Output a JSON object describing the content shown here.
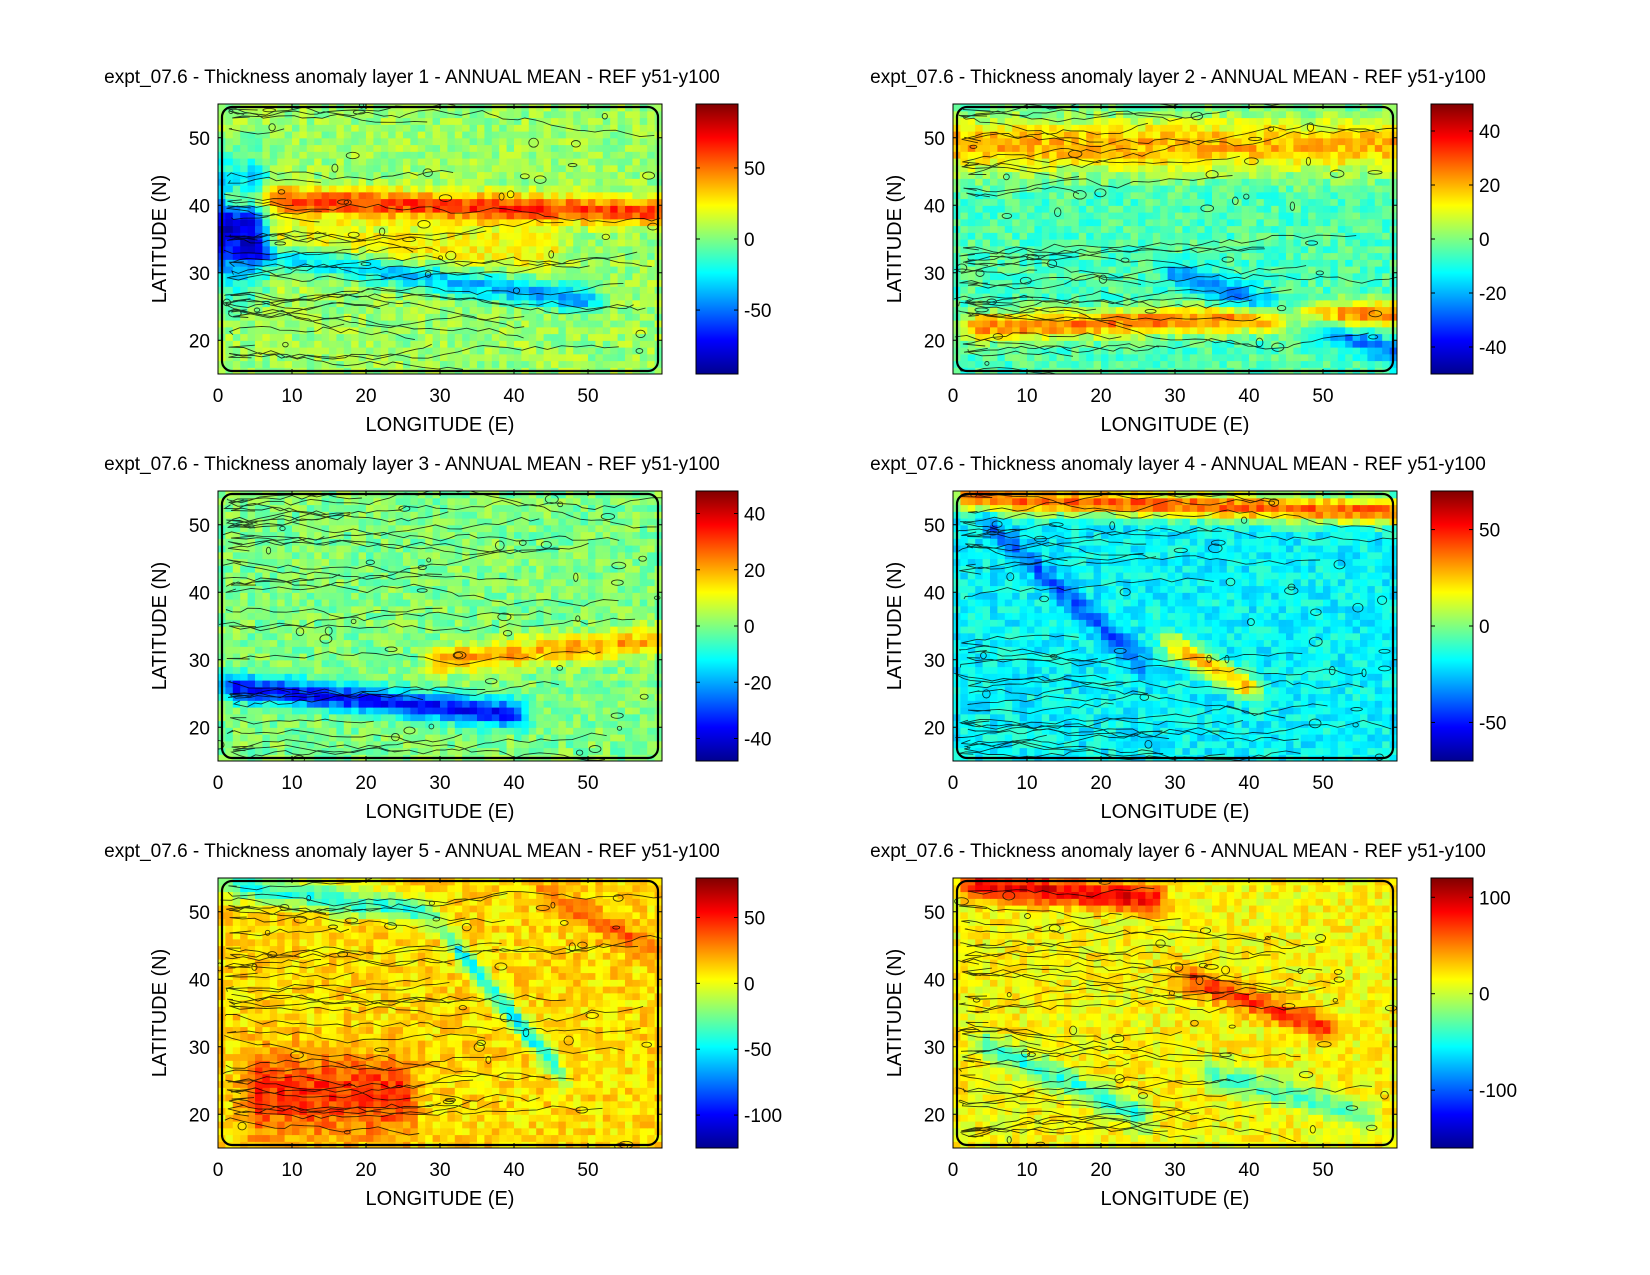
{
  "figure": {
    "background": "#ffffff",
    "colormap": "jet",
    "colormap_stops": [
      "#00008f",
      "#0000ff",
      "#0080ff",
      "#00ffff",
      "#80ff80",
      "#ffff00",
      "#ff8000",
      "#ff0000",
      "#800000"
    ]
  },
  "chart_data": [
    {
      "type": "heatmap",
      "title": "expt_07.6 - Thickness anomaly layer 1 - ANNUAL MEAN - REF y51-y100",
      "xlabel": "LONGITUDE (E)",
      "ylabel": "LATITUDE (N)",
      "xlim": [
        0,
        60
      ],
      "ylim": [
        15,
        55
      ],
      "xticks": [
        0,
        10,
        20,
        30,
        40,
        50
      ],
      "yticks": [
        20,
        30,
        40,
        50
      ],
      "colorbar": {
        "clim": [
          -95,
          95
        ],
        "ticks": [
          -50,
          0,
          50
        ]
      },
      "background_value": 5,
      "features": [
        {
          "kind": "ridge",
          "lon": [
            2,
            60
          ],
          "lat": [
            41,
            39
          ],
          "value": 60
        },
        {
          "kind": "trough",
          "lon": [
            5,
            50
          ],
          "lat": [
            33,
            26
          ],
          "value": -40
        },
        {
          "kind": "band",
          "lon": [
            5,
            45
          ],
          "lat": [
            37,
            31
          ],
          "value": 25
        },
        {
          "kind": "blob",
          "lon": [
            0,
            5
          ],
          "lat": [
            30,
            44
          ],
          "value": -80
        }
      ]
    },
    {
      "type": "heatmap",
      "title": "expt_07.6 - Thickness anomaly layer 2 - ANNUAL MEAN - REF y51-y100",
      "xlabel": "LONGITUDE (E)",
      "ylabel": "LATITUDE (N)",
      "xlim": [
        0,
        60
      ],
      "ylim": [
        15,
        55
      ],
      "xticks": [
        0,
        10,
        20,
        30,
        40,
        50
      ],
      "yticks": [
        20,
        30,
        40,
        50
      ],
      "colorbar": {
        "clim": [
          -50,
          50
        ],
        "ticks": [
          -40,
          -20,
          0,
          20,
          40
        ]
      },
      "background_value": -5,
      "features": [
        {
          "kind": "band",
          "lon": [
            0,
            60
          ],
          "lat": [
            52,
            46
          ],
          "value": 20
        },
        {
          "kind": "ridge",
          "lon": [
            3,
            60
          ],
          "lat": [
            22,
            24
          ],
          "value": 25
        },
        {
          "kind": "trough",
          "lon": [
            30,
            60
          ],
          "lat": [
            30,
            18
          ],
          "value": -25
        }
      ]
    },
    {
      "type": "heatmap",
      "title": "expt_07.6 - Thickness anomaly layer 3 - ANNUAL MEAN - REF y51-y100",
      "xlabel": "LONGITUDE (E)",
      "ylabel": "LATITUDE (N)",
      "xlim": [
        0,
        60
      ],
      "ylim": [
        15,
        55
      ],
      "xticks": [
        0,
        10,
        20,
        30,
        40,
        50
      ],
      "yticks": [
        20,
        30,
        40,
        50
      ],
      "colorbar": {
        "clim": [
          -48,
          48
        ],
        "ticks": [
          -40,
          -20,
          0,
          20,
          40
        ]
      },
      "background_value": 0,
      "features": [
        {
          "kind": "trough",
          "lon": [
            2,
            40
          ],
          "lat": [
            26,
            22
          ],
          "value": -35
        },
        {
          "kind": "ridge",
          "lon": [
            30,
            60
          ],
          "lat": [
            30,
            33
          ],
          "value": 20
        }
      ]
    },
    {
      "type": "heatmap",
      "title": "expt_07.6 - Thickness anomaly layer 4 - ANNUAL MEAN - REF y51-y100",
      "xlabel": "LONGITUDE (E)",
      "ylabel": "LATITUDE (N)",
      "xlim": [
        0,
        60
      ],
      "ylim": [
        15,
        55
      ],
      "xticks": [
        0,
        10,
        20,
        30,
        40,
        50
      ],
      "yticks": [
        20,
        30,
        40,
        50
      ],
      "colorbar": {
        "clim": [
          -70,
          70
        ],
        "ticks": [
          -50,
          0,
          50
        ]
      },
      "background_value": -18,
      "features": [
        {
          "kind": "ridge",
          "lon": [
            2,
            60
          ],
          "lat": [
            54,
            52
          ],
          "value": 40
        },
        {
          "kind": "trough",
          "lon": [
            5,
            25
          ],
          "lat": [
            50,
            30
          ],
          "value": -40
        },
        {
          "kind": "ridge",
          "lon": [
            30,
            40
          ],
          "lat": [
            32,
            26
          ],
          "value": 25
        }
      ]
    },
    {
      "type": "heatmap",
      "title": "expt_07.6 - Thickness anomaly layer 5 - ANNUAL MEAN - REF y51-y100",
      "xlabel": "LONGITUDE (E)",
      "ylabel": "LATITUDE (N)",
      "xlim": [
        0,
        60
      ],
      "ylim": [
        15,
        55
      ],
      "xticks": [
        0,
        10,
        20,
        30,
        40,
        50
      ],
      "yticks": [
        20,
        30,
        40,
        50
      ],
      "colorbar": {
        "clim": [
          -125,
          80
        ],
        "ticks": [
          -100,
          -50,
          0,
          50
        ]
      },
      "background_value": 10,
      "features": [
        {
          "kind": "blob",
          "lon": [
            5,
            25
          ],
          "lat": [
            18,
            28
          ],
          "value": 45
        },
        {
          "kind": "trough",
          "lon": [
            32,
            45
          ],
          "lat": [
            45,
            28
          ],
          "value": -50
        },
        {
          "kind": "ridge",
          "lon": [
            45,
            58
          ],
          "lat": [
            52,
            45
          ],
          "value": 35
        },
        {
          "kind": "ridge",
          "lon": [
            2,
            28
          ],
          "lat": [
            54,
            50
          ],
          "value": -40
        }
      ]
    },
    {
      "type": "heatmap",
      "title": "expt_07.6 - Thickness anomaly layer 6 - ANNUAL MEAN - REF y51-y100",
      "xlabel": "LONGITUDE (E)",
      "ylabel": "LATITUDE (N)",
      "xlim": [
        0,
        60
      ],
      "ylim": [
        15,
        55
      ],
      "xticks": [
        0,
        10,
        20,
        30,
        40,
        50
      ],
      "yticks": [
        20,
        30,
        40,
        50
      ],
      "colorbar": {
        "clim": [
          -160,
          120
        ],
        "ticks": [
          -100,
          0,
          100
        ]
      },
      "background_value": 15,
      "features": [
        {
          "kind": "ridge",
          "lon": [
            32,
            50
          ],
          "lat": [
            40,
            33
          ],
          "value": 70
        },
        {
          "kind": "trough",
          "lon": [
            5,
            25
          ],
          "lat": [
            30,
            20
          ],
          "value": -40
        },
        {
          "kind": "ridge",
          "lon": [
            3,
            27
          ],
          "lat": [
            54,
            52
          ],
          "value": 90
        },
        {
          "kind": "trough",
          "lon": [
            35,
            55
          ],
          "lat": [
            26,
            20
          ],
          "value": -35
        }
      ]
    }
  ]
}
